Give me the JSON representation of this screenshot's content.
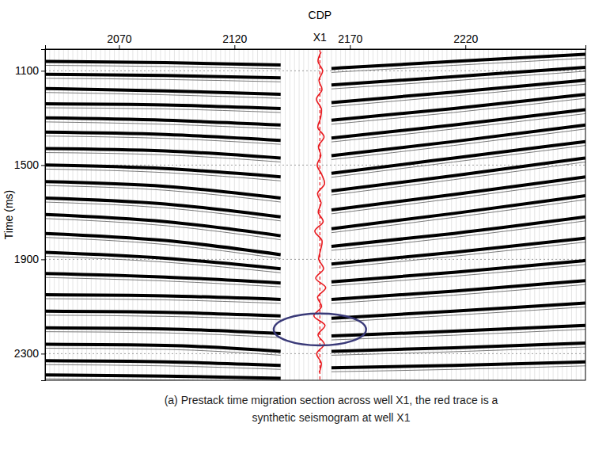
{
  "chart_data": {
    "type": "seismic",
    "x_label": "CDP",
    "y_label": "Time (ms)",
    "caption": "(a) Prestack time migration section across well X1, the red trace is a synthetic seismogram at well X1",
    "xlim": [
      2038,
      2272
    ],
    "ylim": [
      1008,
      2413
    ],
    "xticks": [
      2070,
      2120,
      2170,
      2220
    ],
    "yticks": [
      1100,
      1500,
      1900,
      2300
    ],
    "grid": true,
    "color": "#000000",
    "series": [
      {
        "x": [
          2038,
          2090,
          2140
        ],
        "values": [
          1060,
          1065,
          1075
        ]
      },
      {
        "x": [
          2038,
          2090,
          2140
        ],
        "values": [
          1115,
          1120,
          1130
        ]
      },
      {
        "x": [
          2038,
          2090,
          2140
        ],
        "values": [
          1175,
          1185,
          1200
        ]
      },
      {
        "x": [
          2038,
          2090,
          2140
        ],
        "values": [
          1240,
          1245,
          1260
        ]
      },
      {
        "x": [
          2038,
          2090,
          2140
        ],
        "values": [
          1300,
          1310,
          1330
        ]
      },
      {
        "x": [
          2038,
          2090,
          2140
        ],
        "values": [
          1360,
          1370,
          1395
        ]
      },
      {
        "x": [
          2038,
          2090,
          2140
        ],
        "values": [
          1430,
          1440,
          1470
        ]
      },
      {
        "x": [
          2038,
          2090,
          2140
        ],
        "values": [
          1500,
          1515,
          1550
        ]
      },
      {
        "x": [
          2038,
          2090,
          2140
        ],
        "values": [
          1570,
          1590,
          1640
        ]
      },
      {
        "x": [
          2038,
          2090,
          2140
        ],
        "values": [
          1640,
          1665,
          1720
        ]
      },
      {
        "x": [
          2038,
          2090,
          2140
        ],
        "values": [
          1710,
          1740,
          1800
        ]
      },
      {
        "x": [
          2038,
          2090,
          2140
        ],
        "values": [
          1790,
          1820,
          1880
        ]
      },
      {
        "x": [
          2038,
          2090,
          2140
        ],
        "values": [
          1870,
          1895,
          1940
        ]
      },
      {
        "x": [
          2038,
          2090,
          2140
        ],
        "values": [
          1960,
          1975,
          2000
        ]
      },
      {
        "x": [
          2038,
          2090,
          2140
        ],
        "values": [
          2050,
          2055,
          2070
        ]
      },
      {
        "x": [
          2038,
          2090,
          2140
        ],
        "values": [
          2120,
          2125,
          2140
        ]
      },
      {
        "x": [
          2038,
          2090,
          2140
        ],
        "values": [
          2190,
          2195,
          2215
        ]
      },
      {
        "x": [
          2038,
          2090,
          2140
        ],
        "values": [
          2260,
          2265,
          2290
        ]
      },
      {
        "x": [
          2038,
          2090,
          2140
        ],
        "values": [
          2330,
          2335,
          2350
        ]
      },
      {
        "x": [
          2038,
          2090,
          2140
        ],
        "values": [
          2390,
          2395,
          2405
        ]
      },
      {
        "x": [
          2162,
          2215,
          2272
        ],
        "values": [
          1090,
          1060,
          1030
        ]
      },
      {
        "x": [
          2162,
          2215,
          2272
        ],
        "values": [
          1160,
          1125,
          1085
        ]
      },
      {
        "x": [
          2162,
          2215,
          2272
        ],
        "values": [
          1235,
          1190,
          1140
        ]
      },
      {
        "x": [
          2162,
          2215,
          2272
        ],
        "values": [
          1310,
          1260,
          1200
        ]
      },
      {
        "x": [
          2162,
          2215,
          2272
        ],
        "values": [
          1385,
          1330,
          1265
        ]
      },
      {
        "x": [
          2162,
          2215,
          2272
        ],
        "values": [
          1460,
          1400,
          1330
        ]
      },
      {
        "x": [
          2162,
          2215,
          2272
        ],
        "values": [
          1535,
          1470,
          1400
        ]
      },
      {
        "x": [
          2162,
          2215,
          2272
        ],
        "values": [
          1610,
          1545,
          1470
        ]
      },
      {
        "x": [
          2162,
          2215,
          2272
        ],
        "values": [
          1690,
          1625,
          1550
        ]
      },
      {
        "x": [
          2162,
          2215,
          2272
        ],
        "values": [
          1770,
          1705,
          1630
        ]
      },
      {
        "x": [
          2162,
          2215,
          2272
        ],
        "values": [
          1845,
          1790,
          1720
        ]
      },
      {
        "x": [
          2162,
          2215,
          2272
        ],
        "values": [
          1920,
          1870,
          1810
        ]
      },
      {
        "x": [
          2162,
          2215,
          2272
        ],
        "values": [
          1995,
          1955,
          1905
        ]
      },
      {
        "x": [
          2162,
          2215,
          2272
        ],
        "values": [
          2070,
          2035,
          1990
        ]
      },
      {
        "x": [
          2162,
          2215,
          2272
        ],
        "values": [
          2150,
          2120,
          2085
        ]
      },
      {
        "x": [
          2162,
          2215,
          2272
        ],
        "values": [
          2225,
          2205,
          2180
        ]
      },
      {
        "x": [
          2162,
          2215,
          2272
        ],
        "values": [
          2290,
          2275,
          2255
        ]
      },
      {
        "x": [
          2162,
          2215,
          2272
        ],
        "values": [
          2360,
          2350,
          2335
        ]
      }
    ],
    "synthetic": {
      "label": "X1",
      "cdp": 2157,
      "color": "#e8191e",
      "time": [
        1020,
        1060,
        1100,
        1140,
        1180,
        1220,
        1260,
        1300,
        1340,
        1380,
        1420,
        1460,
        1500,
        1540,
        1580,
        1620,
        1660,
        1700,
        1740,
        1780,
        1820,
        1860,
        1900,
        1940,
        1980,
        2020,
        2060,
        2100,
        2140,
        2180,
        2220,
        2260,
        2300,
        2340,
        2380
      ],
      "amplitude": [
        0.5,
        -0.8,
        1.2,
        -0.4,
        0.9,
        -1.5,
        0.6,
        0.3,
        -0.9,
        1.8,
        -0.6,
        0.4,
        -1.2,
        0.8,
        2.0,
        -1.0,
        0.5,
        -0.7,
        1.4,
        -2.2,
        0.9,
        0.3,
        -0.5,
        1.6,
        -1.8,
        2.5,
        -1.0,
        0.7,
        -2.6,
        2.2,
        -0.8,
        1.9,
        -1.4,
        0.6,
        -0.3
      ]
    },
    "highlight": {
      "x": [
        2137,
        2177
      ],
      "y": [
        2130,
        2265
      ],
      "color": "#3a3a78"
    }
  }
}
